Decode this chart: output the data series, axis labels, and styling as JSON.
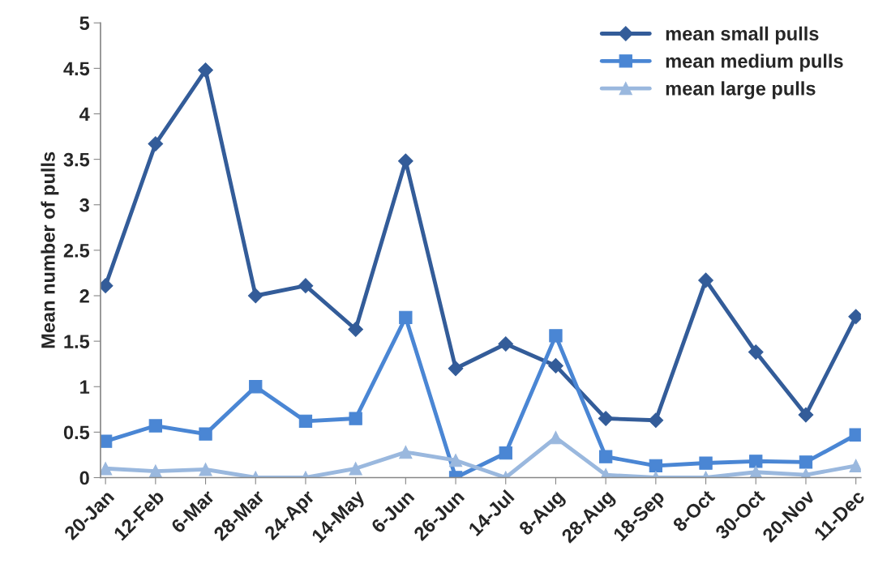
{
  "chart_data": {
    "type": "line",
    "ylabel": "Mean number of pulls",
    "categories": [
      "20-Jan",
      "12-Feb",
      "6-Mar",
      "28-Mar",
      "24-Apr",
      "14-May",
      "6-Jun",
      "26-Jun",
      "14-Jul",
      "8-Aug",
      "28-Aug",
      "18-Sep",
      "8-Oct",
      "30-Oct",
      "20-Nov",
      "11-Dec"
    ],
    "series": [
      {
        "name": "mean small pulls",
        "color": "#335c99",
        "marker": "diamond",
        "values": [
          2.11,
          3.67,
          4.48,
          2.0,
          2.11,
          1.63,
          3.48,
          1.2,
          1.47,
          1.23,
          0.65,
          0.63,
          2.17,
          1.38,
          0.69,
          1.77
        ]
      },
      {
        "name": "mean medium pulls",
        "color": "#4a86d4",
        "marker": "square",
        "values": [
          0.4,
          0.57,
          0.48,
          1.0,
          0.62,
          0.65,
          1.76,
          0.0,
          0.27,
          1.56,
          0.23,
          0.13,
          0.16,
          0.18,
          0.17,
          0.47
        ]
      },
      {
        "name": "mean large pulls",
        "color": "#9ab8de",
        "marker": "triangle",
        "values": [
          0.1,
          0.07,
          0.09,
          0.0,
          0.0,
          0.1,
          0.28,
          0.19,
          0.0,
          0.44,
          0.03,
          0.0,
          0.0,
          0.06,
          0.03,
          0.13
        ]
      }
    ],
    "ylim": [
      0,
      5
    ],
    "yticks": [
      0,
      0.5,
      1,
      1.5,
      2,
      2.5,
      3,
      3.5,
      4,
      4.5,
      5
    ],
    "grid": false,
    "legend": "top right",
    "line_style": "solid"
  }
}
